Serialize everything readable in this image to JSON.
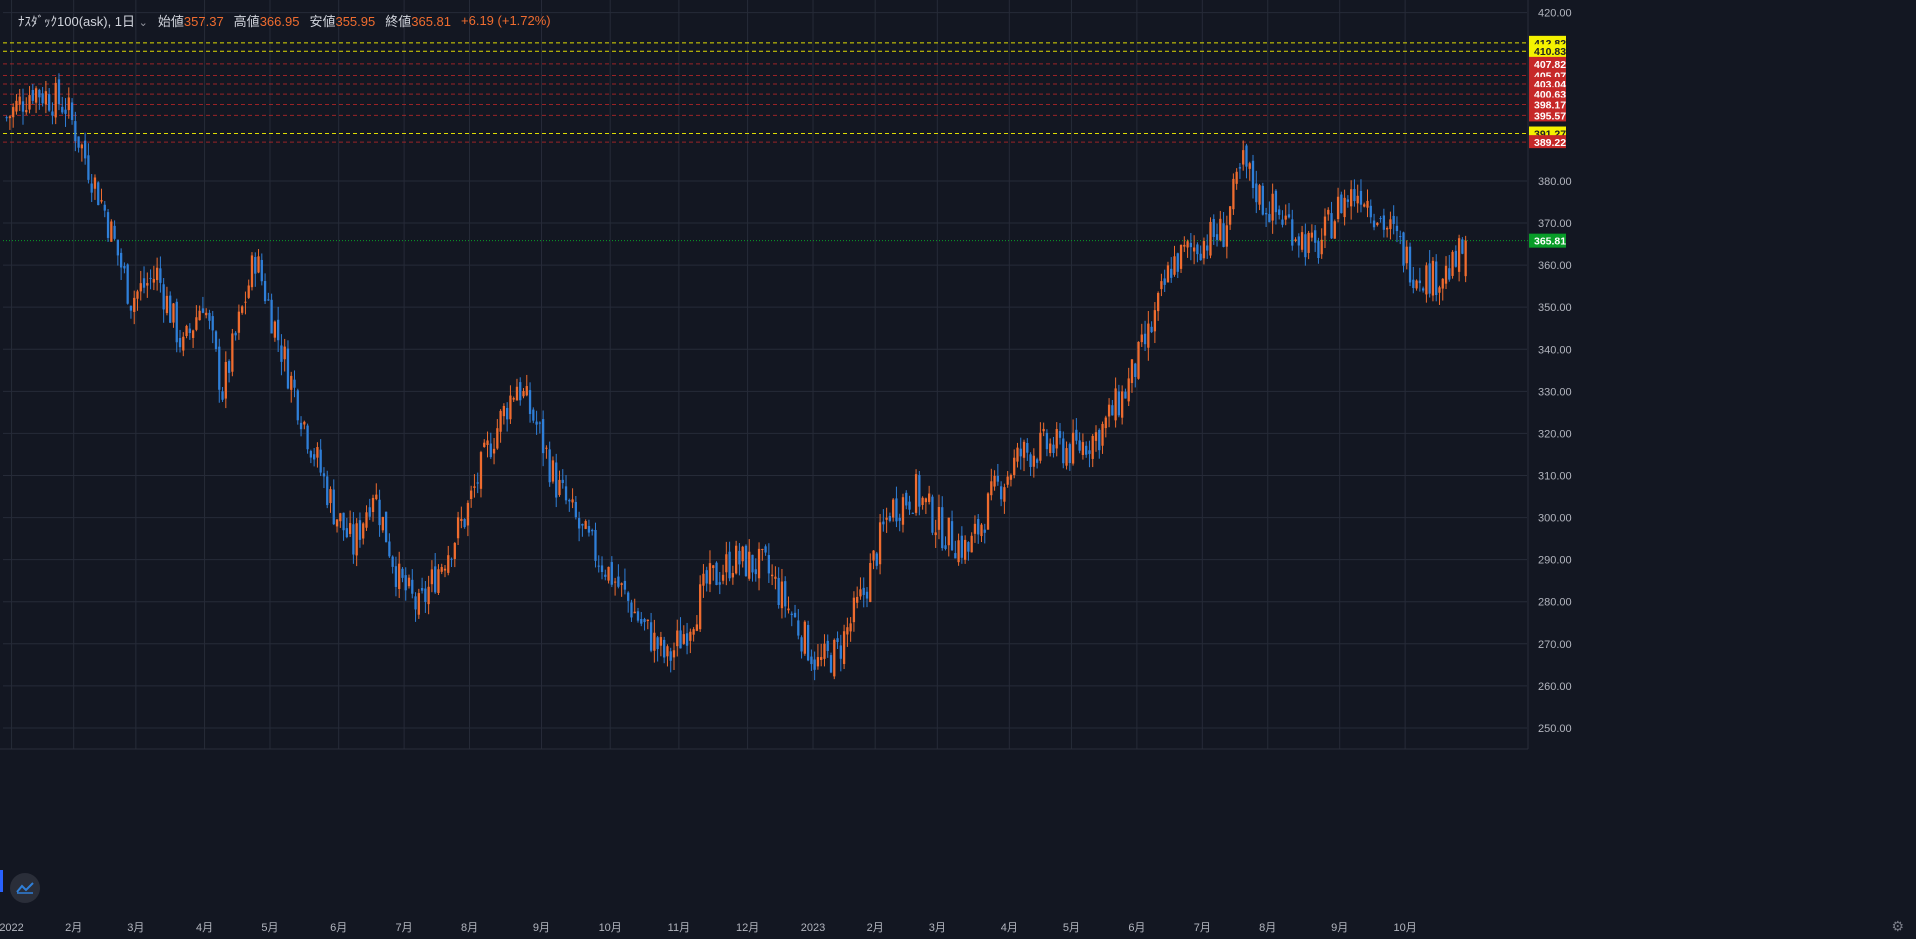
{
  "legend": {
    "symbol": "ﾅｽﾀﾞｯｸ100(ask), 1日",
    "open_label": "始値",
    "open": "357.37",
    "high_label": "高値",
    "high": "366.95",
    "low_label": "安値",
    "low": "355.95",
    "close_label": "終値",
    "close": "365.81",
    "change": "+6.19 (+1.72%)"
  },
  "colors": {
    "background": "#131722",
    "up": "#ef6c2f",
    "down": "#2f7fd8",
    "grid": "#262b38",
    "axis_text": "#b2b5be",
    "last_price": "#089c28",
    "level_yellow": "#f5f200",
    "level_red": "#c62828"
  },
  "chart_data": {
    "type": "candlestick",
    "timeframe": "1日",
    "y_range": [
      245,
      423
    ],
    "y_ticks": [
      250,
      260,
      270,
      280,
      290,
      300,
      310,
      320,
      330,
      340,
      350,
      360,
      370,
      380,
      420
    ],
    "x_tick_labels": [
      "2022",
      "2月",
      "3月",
      "4月",
      "5月",
      "6月",
      "7月",
      "8月",
      "9月",
      "10月",
      "11月",
      "12月",
      "2023",
      "2月",
      "3月",
      "4月",
      "5月",
      "6月",
      "7月",
      "8月",
      "9月",
      "10月"
    ],
    "x_tick_index": [
      2,
      21,
      40,
      61,
      81,
      102,
      122,
      142,
      164,
      185,
      206,
      227,
      247,
      266,
      285,
      307,
      326,
      346,
      366,
      386,
      408,
      428
    ],
    "total_bars": 457,
    "last_price": "365.81",
    "horizontal_levels": [
      {
        "price": 412.82,
        "label": "412.82",
        "color": "yellow"
      },
      {
        "price": 410.83,
        "label": "410.83",
        "color": "yellow"
      },
      {
        "price": 407.82,
        "label": "407.82",
        "color": "red"
      },
      {
        "price": 405.07,
        "label": "405.07",
        "color": "red"
      },
      {
        "price": 403.04,
        "label": "403.04",
        "color": "red"
      },
      {
        "price": 400.63,
        "label": "400.63",
        "color": "red"
      },
      {
        "price": 398.17,
        "label": "398.17",
        "color": "red"
      },
      {
        "price": 395.57,
        "label": "395.57",
        "color": "red"
      },
      {
        "price": 391.27,
        "label": "391.27",
        "color": "yellow"
      },
      {
        "price": 389.22,
        "label": "389.22",
        "color": "red"
      }
    ],
    "close_path_anchors": [
      [
        0,
        395
      ],
      [
        8,
        402
      ],
      [
        18,
        398
      ],
      [
        22,
        390
      ],
      [
        30,
        373
      ],
      [
        38,
        352
      ],
      [
        46,
        358
      ],
      [
        54,
        340
      ],
      [
        60,
        352
      ],
      [
        66,
        330
      ],
      [
        76,
        362
      ],
      [
        84,
        340
      ],
      [
        92,
        320
      ],
      [
        100,
        302
      ],
      [
        106,
        293
      ],
      [
        112,
        307
      ],
      [
        120,
        285
      ],
      [
        126,
        278
      ],
      [
        132,
        288
      ],
      [
        140,
        300
      ],
      [
        148,
        318
      ],
      [
        156,
        332
      ],
      [
        162,
        322
      ],
      [
        168,
        308
      ],
      [
        176,
        296
      ],
      [
        186,
        285
      ],
      [
        194,
        275
      ],
      [
        202,
        266
      ],
      [
        208,
        274
      ],
      [
        214,
        284
      ],
      [
        222,
        290
      ],
      [
        232,
        288
      ],
      [
        240,
        277
      ],
      [
        248,
        265
      ],
      [
        254,
        268
      ],
      [
        262,
        282
      ],
      [
        270,
        302
      ],
      [
        278,
        306
      ],
      [
        286,
        297
      ],
      [
        294,
        292
      ],
      [
        302,
        306
      ],
      [
        310,
        315
      ],
      [
        318,
        317
      ],
      [
        326,
        316
      ],
      [
        334,
        320
      ],
      [
        342,
        330
      ],
      [
        350,
        345
      ],
      [
        356,
        360
      ],
      [
        364,
        365
      ],
      [
        372,
        368
      ],
      [
        378,
        384
      ],
      [
        384,
        375
      ],
      [
        392,
        370
      ],
      [
        400,
        363
      ],
      [
        408,
        375
      ],
      [
        414,
        378
      ],
      [
        420,
        371
      ],
      [
        424,
        367
      ],
      [
        430,
        359
      ],
      [
        436,
        357
      ],
      [
        442,
        359
      ],
      [
        446,
        365
      ]
    ],
    "x_range_bars": [
      0,
      457
    ]
  }
}
